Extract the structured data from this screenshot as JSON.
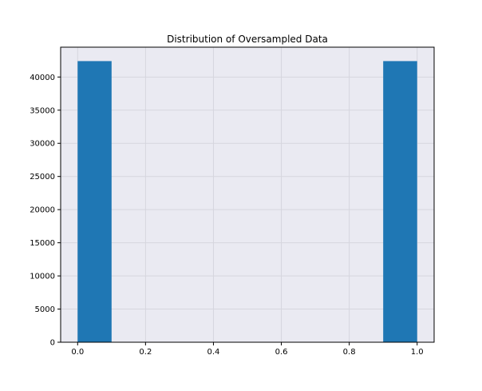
{
  "chart_data": {
    "type": "bar",
    "title": "Distribution of Oversampled Data",
    "xlabel": "",
    "ylabel": "",
    "xlim": [
      -0.05,
      1.05
    ],
    "ylim": [
      0,
      44500
    ],
    "x_ticks": [
      0.0,
      0.2,
      0.4,
      0.6,
      0.8,
      1.0
    ],
    "x_tick_labels": [
      "0.0",
      "0.2",
      "0.4",
      "0.6",
      "0.8",
      "1.0"
    ],
    "y_ticks": [
      0,
      5000,
      10000,
      15000,
      20000,
      25000,
      30000,
      35000,
      40000
    ],
    "y_tick_labels": [
      "0",
      "5000",
      "10000",
      "15000",
      "20000",
      "25000",
      "30000",
      "35000",
      "40000"
    ],
    "bins": [
      {
        "x0": 0.0,
        "x1": 0.1,
        "value": 42400
      },
      {
        "x0": 0.1,
        "x1": 0.2,
        "value": 0
      },
      {
        "x0": 0.2,
        "x1": 0.3,
        "value": 0
      },
      {
        "x0": 0.3,
        "x1": 0.4,
        "value": 0
      },
      {
        "x0": 0.4,
        "x1": 0.5,
        "value": 0
      },
      {
        "x0": 0.5,
        "x1": 0.6,
        "value": 0
      },
      {
        "x0": 0.6,
        "x1": 0.7,
        "value": 0
      },
      {
        "x0": 0.7,
        "x1": 0.8,
        "value": 0
      },
      {
        "x0": 0.8,
        "x1": 0.9,
        "value": 0
      },
      {
        "x0": 0.9,
        "x1": 1.0,
        "value": 42400
      }
    ],
    "grid": true,
    "bar_color": "#1f77b4",
    "plot_background": "#eaeaf2",
    "grid_color": "#d6d6de"
  }
}
